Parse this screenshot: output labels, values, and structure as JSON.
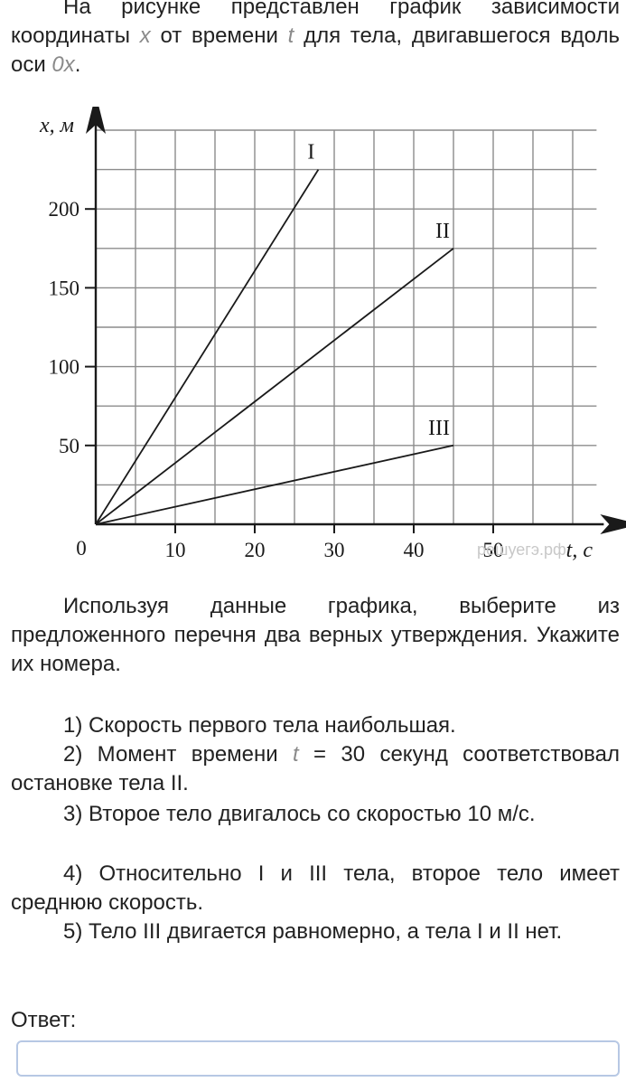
{
  "intro": {
    "part1": "На рисунке представлен график зависимости координаты ",
    "var_x": "x",
    "part2": " от времени ",
    "var_t": "t",
    "part3": " для тела, двигавшегося вдоль оси ",
    "axis_name": "0x",
    "part4": "."
  },
  "chart_data": {
    "type": "line",
    "xlabel": "t, с",
    "ylabel": "x, м",
    "xlim": [
      0,
      63
    ],
    "ylim": [
      0,
      250
    ],
    "x_ticks": [
      10,
      20,
      30,
      40,
      50
    ],
    "y_ticks": [
      50,
      100,
      150,
      200
    ],
    "origin_label": "0",
    "grid": true,
    "grid_step_x": 5,
    "grid_step_y": 25,
    "series": [
      {
        "name": "I",
        "x": [
          0,
          28
        ],
        "y": [
          0,
          225
        ]
      },
      {
        "name": "II",
        "x": [
          0,
          45
        ],
        "y": [
          0,
          175
        ]
      },
      {
        "name": "III",
        "x": [
          0,
          45
        ],
        "y": [
          0,
          50
        ]
      }
    ],
    "watermark": "решуегэ.рф"
  },
  "instruction": "Используя данные графика, выберите из предложенного перечня два верных утверждения. Укажите их номера.",
  "options": [
    {
      "text": "1) Скорость первого тела наибольшая."
    },
    {
      "before": "2) Момент времени ",
      "var": "t",
      "after": " = 30 секунд соответствовал остановке тела II."
    },
    {
      "text": "3) Второе тело двигалось со скоростью 10 м/с."
    },
    {
      "text": "4) Относительно I и III тела, второе тело имеет среднюю скорость."
    },
    {
      "text": "5) Тело III двигается равномерно, а тела I и II нет."
    }
  ],
  "answer": {
    "label": "Ответ:",
    "value": ""
  },
  "colors": {
    "text": "#222222",
    "chart_line": "#1a1a1a",
    "grid": "#8c8c8c",
    "input_border": "#b7c8e4",
    "variable": "#8a8a8a"
  }
}
